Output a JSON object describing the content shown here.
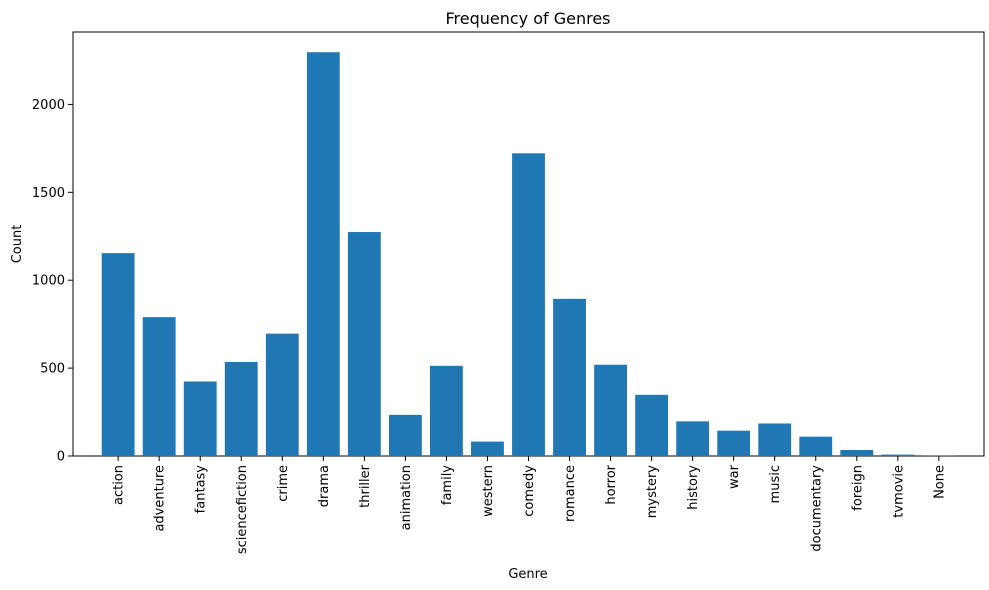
{
  "chart_data": {
    "type": "bar",
    "title": "Frequency of Genres",
    "xlabel": "Genre",
    "ylabel": "Count",
    "categories": [
      "action",
      "adventure",
      "fantasy",
      "sciencefiction",
      "crime",
      "drama",
      "thriller",
      "animation",
      "family",
      "western",
      "comedy",
      "romance",
      "horror",
      "mystery",
      "history",
      "war",
      "music",
      "documentary",
      "foreign",
      "tvmovie",
      "None"
    ],
    "values": [
      1154,
      790,
      424,
      535,
      696,
      2297,
      1274,
      234,
      513,
      82,
      1722,
      894,
      519,
      348,
      197,
      144,
      185,
      110,
      34,
      8,
      1
    ],
    "ylim": [
      0,
      2412
    ],
    "yticks": [
      0,
      500,
      1000,
      1500,
      2000
    ],
    "xtick_rotation": 90,
    "grid": false,
    "legend": "none",
    "bar_color": "#1f77b4"
  }
}
